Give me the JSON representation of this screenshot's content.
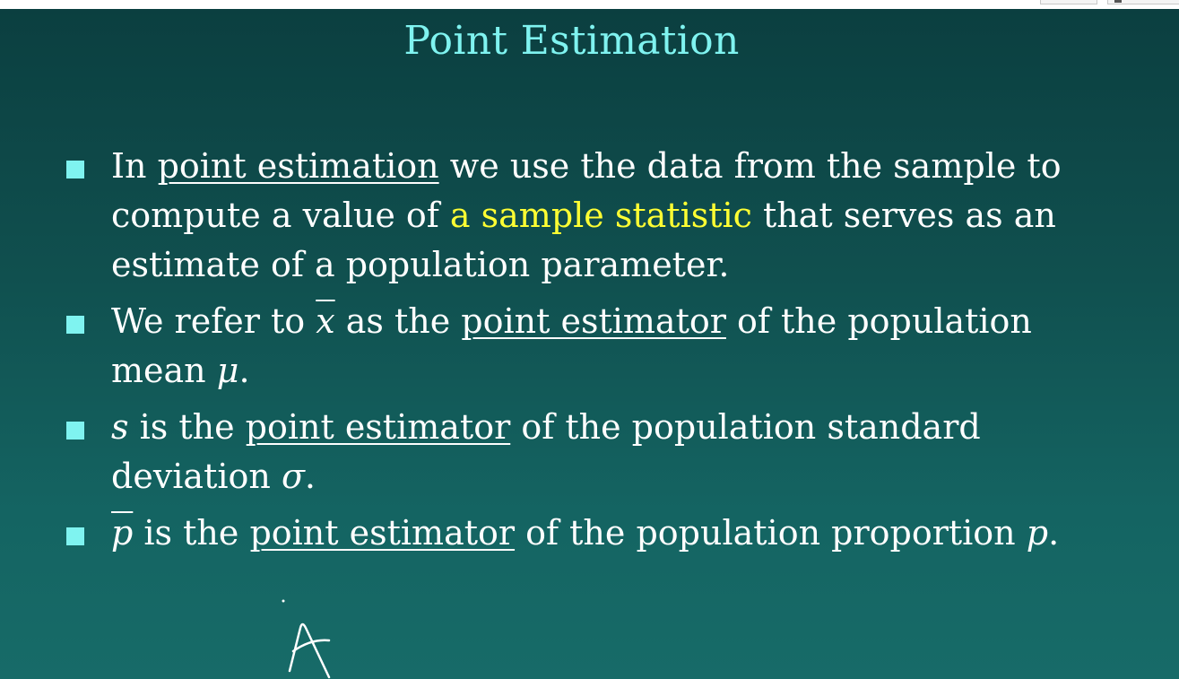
{
  "slide": {
    "title": "Point Estimation",
    "bullets": [
      {
        "pre": "In ",
        "term": "point estimation",
        "mid": " we use the data from the sample to compute a value of ",
        "highlight": "a sample statistic",
        "post": " that serves as an estimate of a population parameter."
      },
      {
        "pre": "We refer to ",
        "symbol": "x",
        "mid": " as the ",
        "term": "point estimator",
        "post": " of the population mean ",
        "symbol2": "μ",
        "end": "."
      },
      {
        "symbol": "s",
        "mid": " is the ",
        "term": "point estimator",
        "post": " of the population standard deviation ",
        "symbol2": "σ",
        "end": "."
      },
      {
        "symbol": "p",
        "mid": " is the ",
        "term": "point estimator",
        "post": " of the population proportion ",
        "symbol2": "p",
        "end": "."
      }
    ],
    "colors": {
      "title": "#7ff3f0",
      "bullet_marker": "#7ff3f0",
      "highlight": "#ffff33",
      "text": "#ffffff"
    }
  },
  "annotation": {
    "handwritten_letter": "A"
  }
}
